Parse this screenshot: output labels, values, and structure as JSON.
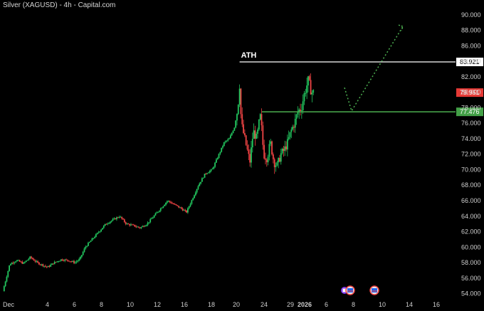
{
  "chart_data": {
    "type": "candlestick",
    "title": "Silver (XAGUSD) - 4h - Capital.com",
    "colors": {
      "up": "#22c55e",
      "down": "#ef4444",
      "background": "#000000",
      "ath_line": "#ffffff",
      "support_line": "#4caf50",
      "projection": "#4caf50",
      "last_price_bg": "#e53935",
      "support_bg": "#43a047"
    },
    "y_axis": {
      "ticks": [
        54,
        56,
        58,
        60,
        62,
        64,
        66,
        68,
        70,
        72,
        74,
        76,
        78,
        80,
        82,
        84,
        86,
        88,
        90
      ],
      "tick_labels": [
        "54.000",
        "56.000",
        "58.000",
        "60.000",
        "62.000",
        "64.000",
        "66.000",
        "68.000",
        "70.000",
        "72.000",
        "74.000",
        "76.000",
        "78.000",
        "80.000",
        "82.000",
        "84.000",
        "86.000",
        "88.000",
        "90.000"
      ],
      "range": [
        53.5,
        91
      ]
    },
    "x_axis": {
      "labels": [
        {
          "text": "Dec",
          "pos": 0
        },
        {
          "text": "4",
          "pos": 1
        },
        {
          "text": "6",
          "pos": 2
        },
        {
          "text": "8",
          "pos": 3
        },
        {
          "text": "10",
          "pos": 4
        },
        {
          "text": "12",
          "pos": 5
        },
        {
          "text": "16",
          "pos": 6
        },
        {
          "text": "18",
          "pos": 7
        },
        {
          "text": "20",
          "pos": 8
        },
        {
          "text": "24",
          "pos": 9
        },
        {
          "text": "29",
          "pos": 10
        },
        {
          "text": "2026",
          "pos": 11,
          "bold": true
        },
        {
          "text": "6",
          "pos": 12
        },
        {
          "text": "8",
          "pos": 13
        },
        {
          "text": "10",
          "pos": 14
        },
        {
          "text": "14",
          "pos": 15
        },
        {
          "text": "16",
          "pos": 16
        }
      ]
    },
    "ath": {
      "label": "ATH",
      "value": 83.921,
      "value_label": "83.921"
    },
    "last_price": {
      "value": 79.961,
      "value_label": "79.961"
    },
    "support": {
      "value": 77.476,
      "value_label": "77.476"
    },
    "projection": {
      "points": [
        {
          "t": 0.905,
          "price": 80.6
        },
        {
          "t": 0.935,
          "price": 77.6
        },
        {
          "t": 1.0,
          "price": 88.5
        }
      ]
    },
    "close_path": [
      [
        0.0,
        54.3
      ],
      [
        0.02,
        57.8
      ],
      [
        0.04,
        58.3
      ],
      [
        0.06,
        57.9
      ],
      [
        0.08,
        58.7
      ],
      [
        0.1,
        58.0
      ],
      [
        0.115,
        57.7
      ],
      [
        0.13,
        57.4
      ],
      [
        0.15,
        58.0
      ],
      [
        0.17,
        58.4
      ],
      [
        0.19,
        58.3
      ],
      [
        0.21,
        58.0
      ],
      [
        0.225,
        58.5
      ],
      [
        0.24,
        60.0
      ],
      [
        0.26,
        61.0
      ],
      [
        0.28,
        62.0
      ],
      [
        0.3,
        63.0
      ],
      [
        0.32,
        63.5
      ],
      [
        0.34,
        64.0
      ],
      [
        0.36,
        63.0
      ],
      [
        0.38,
        62.8
      ],
      [
        0.4,
        62.5
      ],
      [
        0.42,
        63.0
      ],
      [
        0.44,
        64.0
      ],
      [
        0.46,
        65.0
      ],
      [
        0.48,
        66.0
      ],
      [
        0.5,
        65.5
      ],
      [
        0.52,
        65.0
      ],
      [
        0.535,
        64.5
      ],
      [
        0.55,
        66.0
      ],
      [
        0.57,
        68.0
      ],
      [
        0.59,
        69.5
      ],
      [
        0.61,
        70.0
      ],
      [
        0.63,
        72.0
      ],
      [
        0.645,
        73.5
      ],
      [
        0.66,
        74.0
      ],
      [
        0.675,
        75.5
      ],
      [
        0.685,
        78.0
      ],
      [
        0.69,
        81.0
      ],
      [
        0.695,
        76.0
      ],
      [
        0.7,
        75.0
      ],
      [
        0.71,
        73.0
      ],
      [
        0.72,
        71.0
      ],
      [
        0.73,
        75.0
      ],
      [
        0.74,
        74.0
      ],
      [
        0.75,
        77.0
      ],
      [
        0.755,
        75.0
      ],
      [
        0.76,
        72.0
      ],
      [
        0.77,
        71.5
      ],
      [
        0.78,
        73.5
      ],
      [
        0.79,
        71.0
      ],
      [
        0.8,
        70.5
      ],
      [
        0.81,
        72.0
      ],
      [
        0.82,
        72.5
      ],
      [
        0.83,
        73.5
      ],
      [
        0.84,
        75.0
      ],
      [
        0.85,
        76.0
      ],
      [
        0.86,
        77.5
      ],
      [
        0.87,
        78.0
      ],
      [
        0.88,
        80.0
      ],
      [
        0.89,
        81.5
      ],
      [
        0.9,
        80.0
      ],
      [
        0.905,
        79.96
      ]
    ]
  },
  "toolbar_icons": [
    {
      "name": "economic-calendar-icon"
    },
    {
      "name": "us-flag-event-icon"
    },
    {
      "name": "us-flag-event-icon-2"
    }
  ]
}
